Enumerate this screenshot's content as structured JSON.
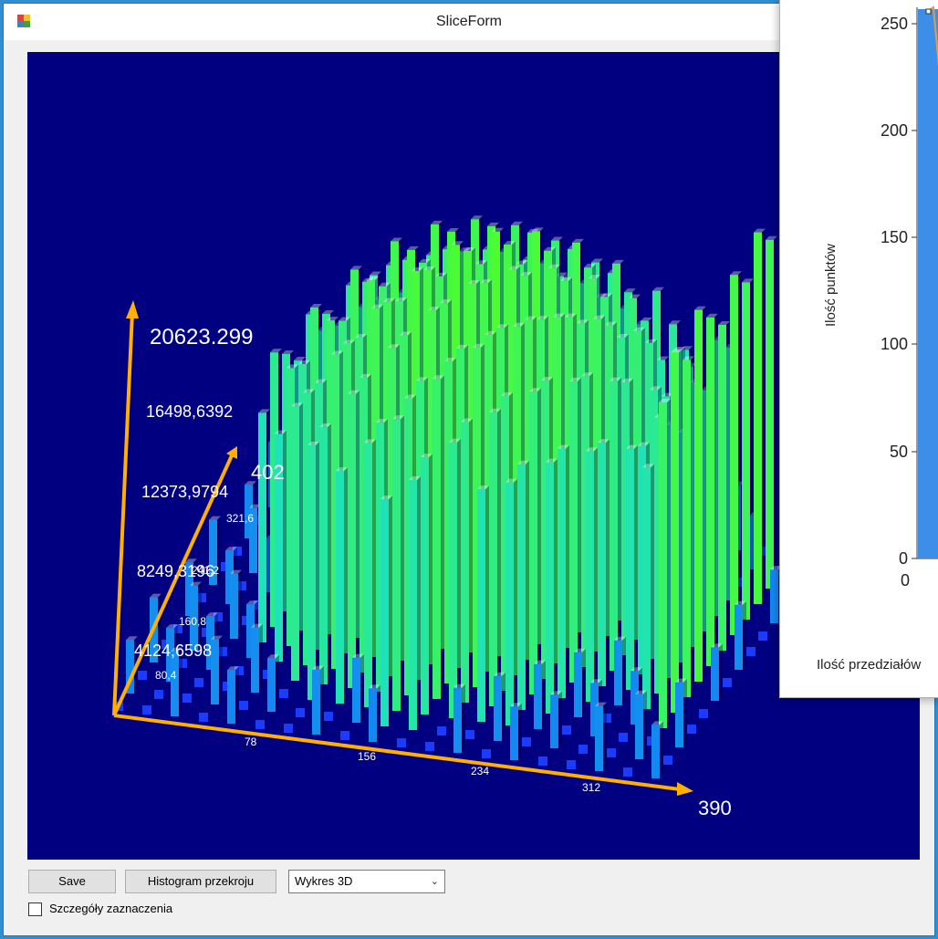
{
  "window": {
    "title": "SliceForm"
  },
  "chart3d": {
    "z_axis_max": "20623.299",
    "z_ticks": [
      "16498,6392",
      "12373,9794",
      "8249,3196",
      "4124,6598"
    ],
    "y_axis_max": "402",
    "y_ticks": [
      "321,6",
      "241,2",
      "160,8",
      "80,4"
    ],
    "x_axis_max": "390",
    "x_ticks": [
      "78",
      "156",
      "234",
      "312"
    ]
  },
  "histogram": {
    "y_label": "Ilość punktów",
    "x_label": "Ilość przedziałów",
    "y_ticks": [
      "250",
      "200",
      "150",
      "100",
      "50",
      "0"
    ],
    "x_ticks": [
      "0"
    ],
    "bar_color": "#3c8ee8",
    "line_color": "#e0a040"
  },
  "controls": {
    "save_label": "Save",
    "histogram_label": "Histogram przekroju",
    "view_select_value": "Wykres 3D",
    "details_checkbox_label": "Szczegóły zaznaczenia",
    "details_checked": false
  },
  "colors": {
    "plot_background": "#000080",
    "axis_color": "#ffb000"
  }
}
